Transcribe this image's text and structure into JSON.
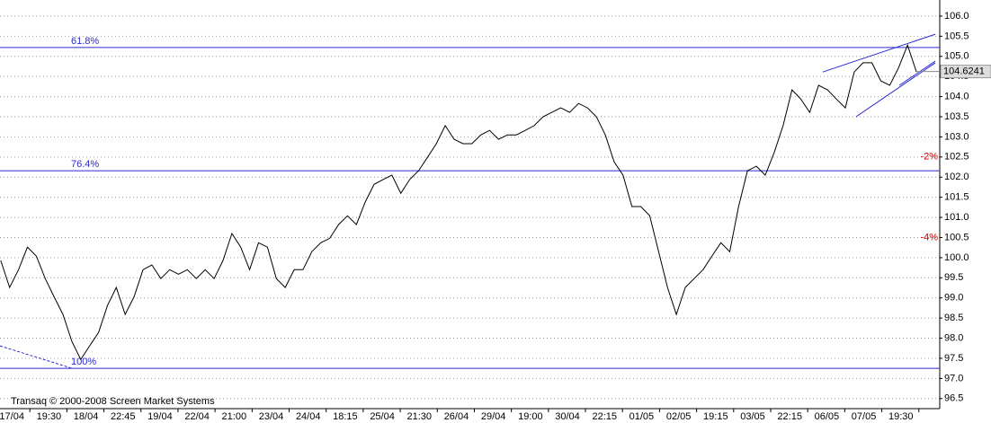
{
  "chart_data": {
    "type": "line",
    "footer": "Transaq © 2000-2008 Screen Market Systems",
    "xlim": [
      -0.32,
      25.05
    ],
    "xticks": [
      {
        "value": 0,
        "label": "17/04"
      },
      {
        "value": 1,
        "label": "19:30"
      },
      {
        "value": 2,
        "label": "18/04"
      },
      {
        "value": 3,
        "label": "22:45"
      },
      {
        "value": 4,
        "label": "19/04"
      },
      {
        "value": 5,
        "label": "22/04"
      },
      {
        "value": 6,
        "label": "21:00"
      },
      {
        "value": 7,
        "label": "23/04"
      },
      {
        "value": 8,
        "label": "24/04"
      },
      {
        "value": 9,
        "label": "18:15"
      },
      {
        "value": 10,
        "label": "25/04"
      },
      {
        "value": 11,
        "label": "21:30"
      },
      {
        "value": 12,
        "label": "26/04"
      },
      {
        "value": 13,
        "label": "29/04"
      },
      {
        "value": 14,
        "label": "19:00"
      },
      {
        "value": 15,
        "label": "30/04"
      },
      {
        "value": 16,
        "label": "22:15"
      },
      {
        "value": 17,
        "label": "01/05"
      },
      {
        "value": 18,
        "label": "02/05"
      },
      {
        "value": 19,
        "label": "19:15"
      },
      {
        "value": 20,
        "label": "03/05"
      },
      {
        "value": 21,
        "label": "22:15"
      },
      {
        "value": 22,
        "label": "06/05"
      },
      {
        "value": 23,
        "label": "07/05"
      },
      {
        "value": 24,
        "label": "19:30"
      }
    ],
    "ylim": [
      96.25,
      106.4
    ],
    "yticks": [
      {
        "value": 96.5,
        "label": "96.5"
      },
      {
        "value": 97,
        "label": "97.0"
      },
      {
        "value": 97.5,
        "label": "97.5"
      },
      {
        "value": 98,
        "label": "98.0"
      },
      {
        "value": 98.5,
        "label": "98.5"
      },
      {
        "value": 99,
        "label": "99.0"
      },
      {
        "value": 99.5,
        "label": "99.5"
      },
      {
        "value": 100,
        "label": "100.0"
      },
      {
        "value": 100.5,
        "label": "100.5"
      },
      {
        "value": 101,
        "label": "101.0"
      },
      {
        "value": 101.5,
        "label": "101.5"
      },
      {
        "value": 102,
        "label": "102.0"
      },
      {
        "value": 102.5,
        "label": "102.5"
      },
      {
        "value": 103,
        "label": "103.0"
      },
      {
        "value": 103.5,
        "label": "103.5"
      },
      {
        "value": 104,
        "label": "104.0"
      },
      {
        "value": 104.5,
        "label": "104.5"
      },
      {
        "value": 105,
        "label": "105.0"
      },
      {
        "value": 105.5,
        "label": "105.5"
      },
      {
        "value": 106,
        "label": "106.0"
      }
    ],
    "grid": true,
    "color": "#000000",
    "x": [
      -0.3,
      -0.06,
      0.18,
      0.42,
      0.66,
      0.9,
      1.14,
      1.38,
      1.62,
      1.86,
      2.1,
      2.34,
      2.58,
      2.82,
      3.06,
      3.3,
      3.54,
      3.78,
      4.02,
      4.26,
      4.5,
      4.74,
      4.98,
      5.22,
      5.46,
      5.7,
      5.94,
      6.18,
      6.42,
      6.66,
      6.9,
      7.14,
      7.38,
      7.62,
      7.86,
      8.1,
      8.34,
      8.58,
      8.82,
      9.06,
      9.3,
      9.54,
      9.78,
      10.02,
      10.26,
      10.5,
      10.74,
      10.98,
      11.22,
      11.46,
      11.7,
      11.94,
      12.18,
      12.42,
      12.66,
      12.9,
      13.14,
      13.38,
      13.62,
      13.86,
      14.1,
      14.34,
      14.58,
      14.82,
      15.06,
      15.3,
      15.54,
      15.78,
      16.02,
      16.26,
      16.5,
      16.74,
      16.98,
      17.22,
      17.46,
      17.7,
      17.94,
      18.18,
      18.42,
      18.66,
      18.9,
      19.14,
      19.38,
      19.62,
      19.86,
      20.1,
      20.34,
      20.58,
      20.82,
      21.06,
      21.3,
      21.54,
      21.78,
      22.02,
      22.26,
      22.5,
      22.74,
      22.98,
      23.22,
      23.46,
      23.7,
      23.94,
      24.18,
      24.42
    ],
    "values": [
      99.93,
      99.26,
      99.7,
      100.26,
      100.04,
      99.48,
      99.03,
      98.59,
      97.92,
      97.47,
      97.81,
      98.14,
      98.81,
      99.26,
      98.59,
      99.03,
      99.7,
      99.82,
      99.48,
      99.7,
      99.59,
      99.7,
      99.48,
      99.7,
      99.48,
      99.93,
      100.6,
      100.26,
      99.7,
      100.37,
      100.26,
      99.48,
      99.26,
      99.7,
      99.7,
      100.15,
      100.37,
      100.48,
      100.82,
      101.04,
      100.82,
      101.38,
      101.82,
      101.94,
      102.05,
      101.6,
      101.94,
      102.16,
      102.49,
      102.83,
      103.28,
      102.94,
      102.83,
      102.83,
      103.05,
      103.16,
      102.94,
      103.05,
      103.05,
      103.16,
      103.28,
      103.5,
      103.61,
      103.72,
      103.61,
      103.83,
      103.72,
      103.5,
      103.05,
      102.38,
      102.05,
      101.27,
      101.27,
      101.04,
      100.15,
      99.26,
      98.59,
      99.26,
      99.48,
      99.7,
      100.04,
      100.37,
      100.15,
      101.27,
      102.16,
      102.27,
      102.05,
      102.61,
      103.28,
      104.17,
      103.94,
      103.61,
      104.28,
      104.17,
      103.94,
      103.72,
      104.61,
      104.84,
      104.84,
      104.39,
      104.28,
      104.72,
      105.28,
      104.61
    ],
    "last": 104.6241,
    "levels": [
      {
        "value": 105.22,
        "label": "61.8%"
      },
      {
        "value": 102.16,
        "label": "76.4%"
      },
      {
        "value": 97.25,
        "label": "100%"
      }
    ],
    "level_color": "#2a2ad0",
    "pct_marks": [
      {
        "value": 102.5,
        "label": "-2%"
      },
      {
        "value": 100.5,
        "label": "-4%"
      }
    ],
    "pct_color": "#cc0000",
    "trendlines": [
      {
        "x": [
          21.89,
          24.93
        ],
        "y": [
          104.61,
          105.55
        ],
        "dashed": false
      },
      {
        "x": [
          22.79,
          24.93
        ],
        "y": [
          103.5,
          104.84
        ],
        "dashed": false
      },
      {
        "x": [
          23.96,
          24.93
        ],
        "y": [
          104.28,
          104.88
        ],
        "dashed": false
      },
      {
        "x": [
          -0.32,
          1.63
        ],
        "y": [
          97.81,
          97.25
        ],
        "dashed": true
      }
    ]
  }
}
